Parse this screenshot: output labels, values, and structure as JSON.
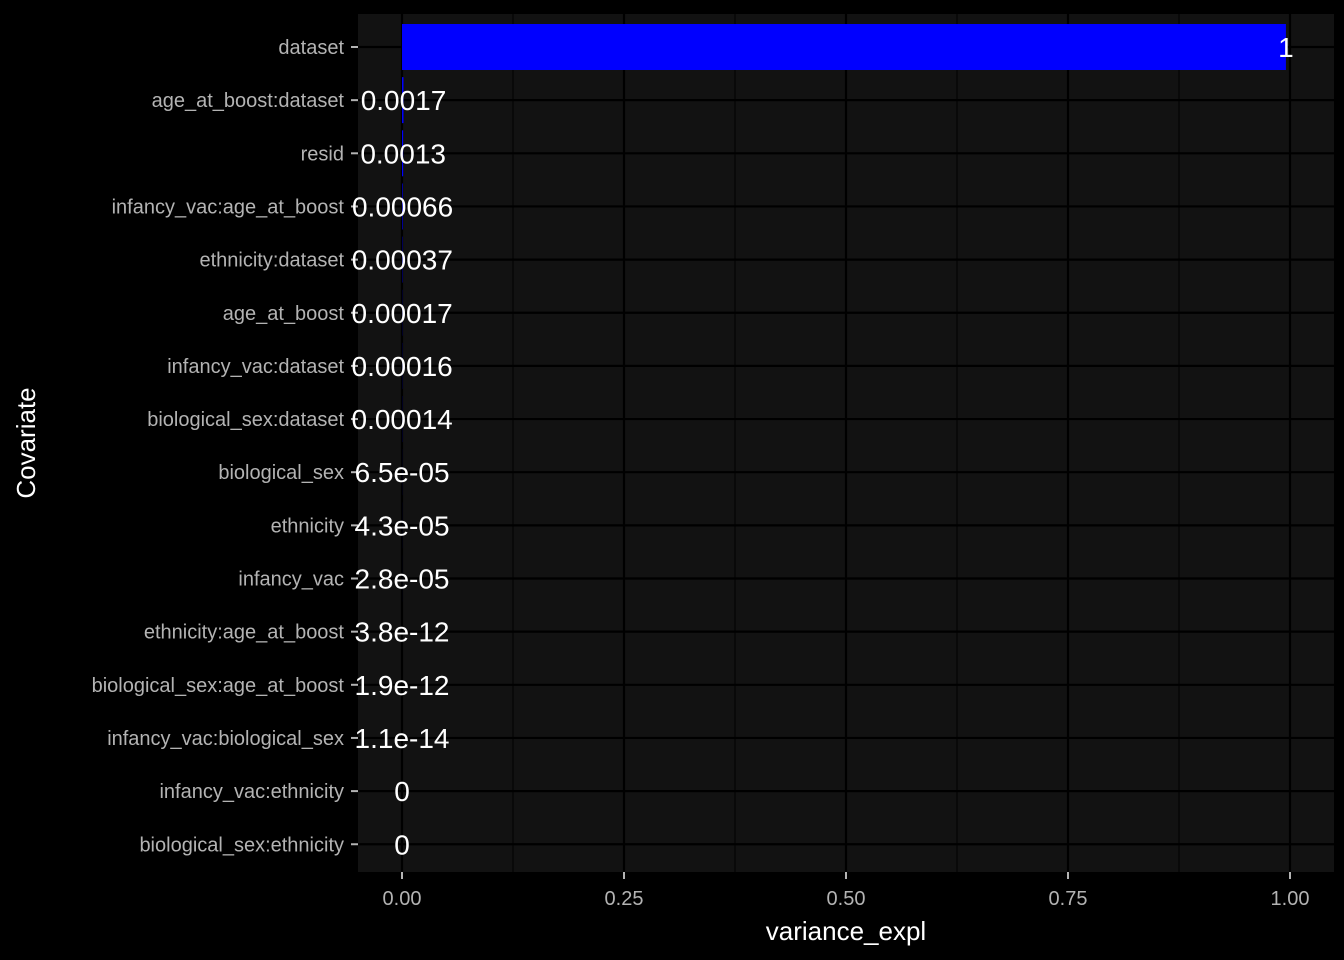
{
  "chart_data": {
    "type": "bar",
    "orientation": "horizontal",
    "xlabel": "variance_expl",
    "ylabel": "Covariate",
    "xlim": [
      0,
      1
    ],
    "xticks": [
      0,
      0.25,
      0.5,
      0.75,
      1
    ],
    "xtick_labels": [
      "0.00",
      "0.25",
      "0.50",
      "0.75",
      "1.00"
    ],
    "grid": true,
    "legend": "none",
    "bar_color": "#0000ff",
    "background_color": "#000000",
    "panel_color": "#121212",
    "categories": [
      "dataset",
      "age_at_boost:dataset",
      "resid",
      "infancy_vac:age_at_boost",
      "ethnicity:dataset",
      "age_at_boost",
      "infancy_vac:dataset",
      "biological_sex:dataset",
      "biological_sex",
      "ethnicity",
      "infancy_vac",
      "ethnicity:age_at_boost",
      "biological_sex:age_at_boost",
      "infancy_vac:biological_sex",
      "infancy_vac:ethnicity",
      "biological_sex:ethnicity"
    ],
    "values": [
      0.9954,
      0.0017,
      0.0013,
      0.00066,
      0.00037,
      0.00017,
      0.00016,
      0.00014,
      6.5e-05,
      4.3e-05,
      2.8e-05,
      3.8e-12,
      1.9e-12,
      1.1e-14,
      0,
      0
    ],
    "data_labels": [
      "1",
      "0.0017",
      "0.0013",
      "0.00066",
      "0.00037",
      "0.00017",
      "0.00016",
      "0.00014",
      "6.5e-05",
      "4.3e-05",
      "2.8e-05",
      "3.8e-12",
      "1.9e-12",
      "1.1e-14",
      "0",
      "0"
    ]
  }
}
